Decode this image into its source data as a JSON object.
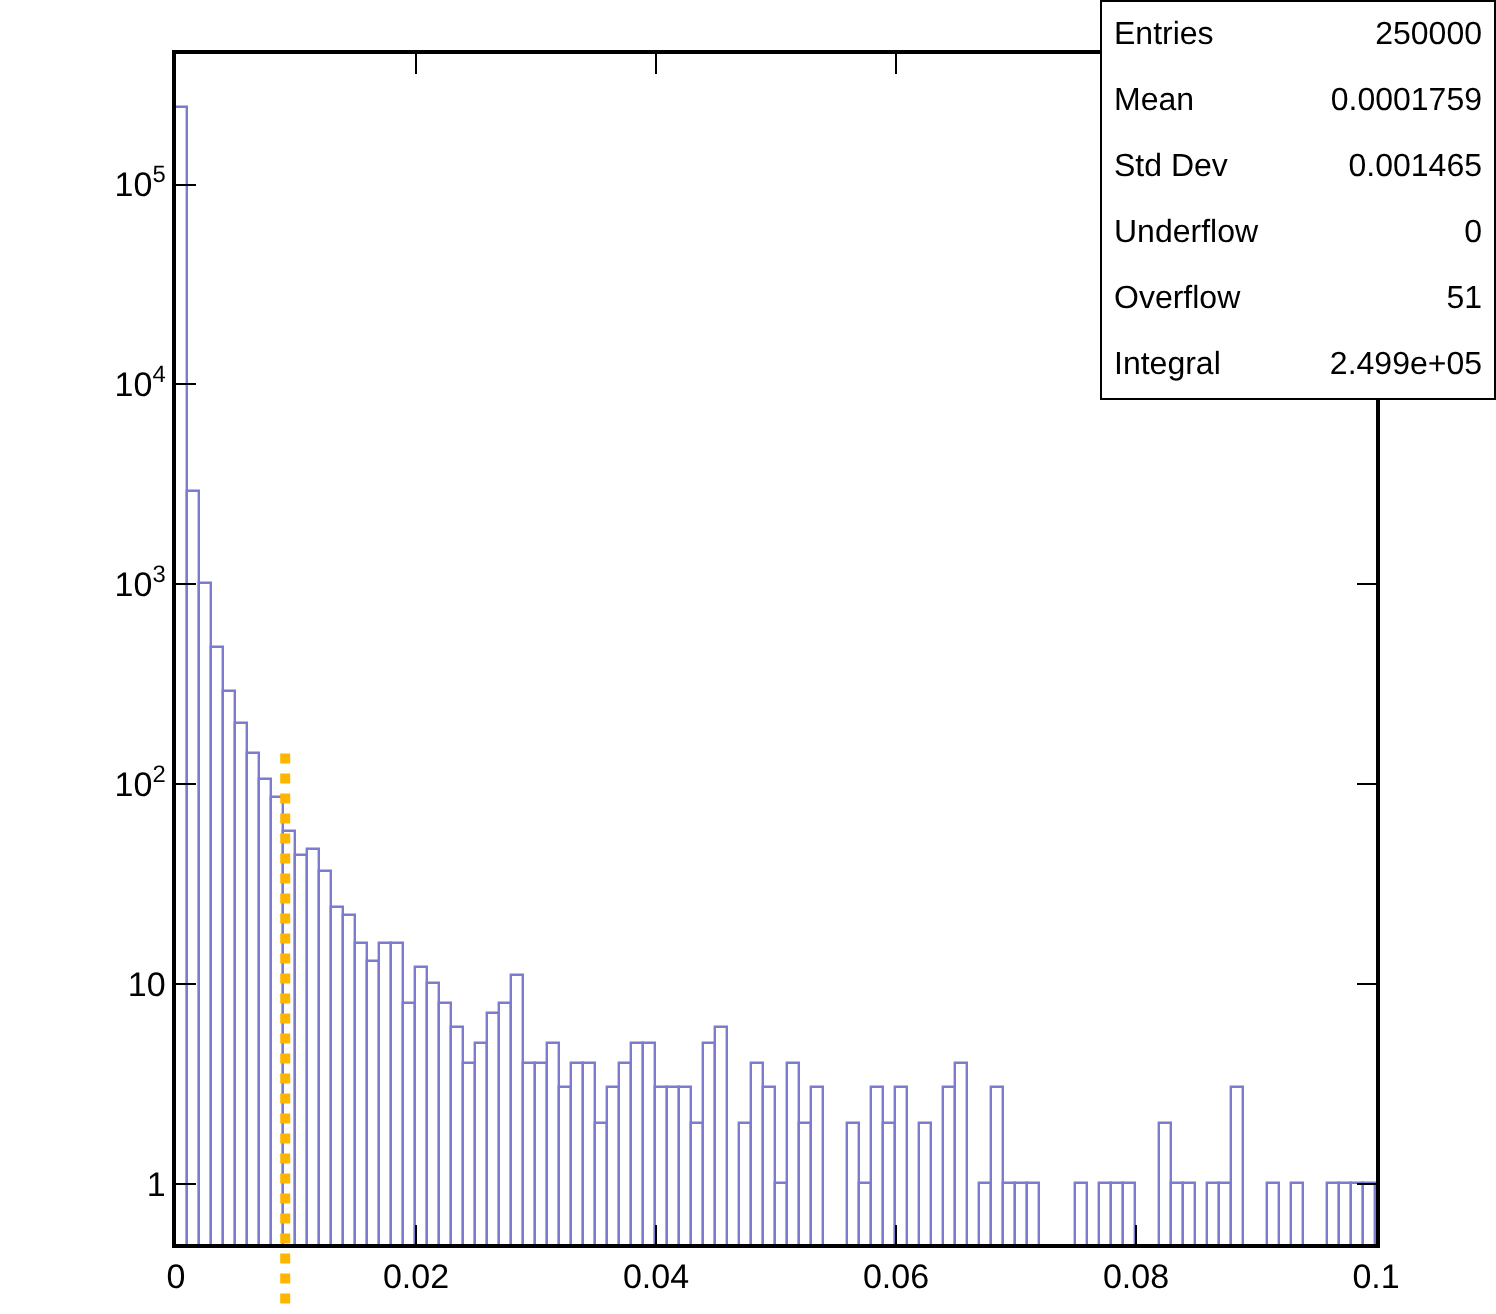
{
  "chart_data": {
    "type": "histogram",
    "log": "y",
    "bins": [
      0,
      0.001,
      0.002,
      0.003,
      0.004,
      0.005,
      0.006,
      0.007,
      0.008,
      0.009,
      0.01,
      0.011,
      0.012,
      0.013,
      0.014,
      0.015,
      0.016,
      0.017,
      0.018,
      0.019,
      0.02,
      0.021,
      0.022,
      0.023,
      0.024,
      0.025,
      0.026,
      0.027,
      0.028,
      0.029,
      0.03,
      0.031,
      0.032,
      0.033,
      0.034,
      0.035,
      0.036,
      0.037,
      0.038,
      0.039,
      0.04,
      0.041,
      0.042,
      0.043,
      0.044,
      0.045,
      0.046,
      0.047,
      0.048,
      0.049,
      0.05,
      0.051,
      0.052,
      0.053,
      0.054,
      0.055,
      0.056,
      0.057,
      0.058,
      0.059,
      0.06,
      0.061,
      0.062,
      0.063,
      0.064,
      0.065,
      0.066,
      0.067,
      0.068,
      0.069,
      0.07,
      0.071,
      0.072,
      0.073,
      0.074,
      0.075,
      0.076,
      0.077,
      0.078,
      0.079,
      0.08,
      0.081,
      0.082,
      0.083,
      0.084,
      0.085,
      0.086,
      0.087,
      0.088,
      0.089,
      0.09,
      0.091,
      0.092,
      0.093,
      0.094,
      0.095,
      0.096,
      0.097,
      0.098,
      0.099,
      0.1
    ],
    "values": [
      240000,
      2900,
      1000,
      480,
      290,
      200,
      140,
      105,
      85,
      58,
      44,
      47,
      36,
      24,
      22,
      16,
      13,
      16,
      16,
      8,
      12,
      10,
      8,
      6,
      4,
      5,
      7,
      8,
      11,
      4,
      4,
      5,
      3,
      4,
      4,
      2,
      3,
      4,
      5,
      5,
      3,
      3,
      3,
      2,
      5,
      6,
      null,
      2,
      4,
      3,
      1,
      4,
      2,
      3,
      null,
      null,
      2,
      1,
      3,
      2,
      3,
      null,
      2,
      null,
      3,
      4,
      null,
      1,
      3,
      1,
      1,
      1,
      null,
      null,
      null,
      1,
      null,
      1,
      1,
      1,
      null,
      null,
      2,
      1,
      1,
      null,
      1,
      1,
      3,
      null,
      null,
      1,
      null,
      1,
      null,
      null,
      1,
      1,
      1,
      1
    ],
    "color": "#7b7bd0",
    "xlim": [
      0,
      0.1
    ],
    "xticks": [
      0,
      0.02,
      0.04,
      0.06,
      0.08,
      0.1
    ],
    "ylim": [
      0.5,
      450000
    ],
    "yticks": [
      1,
      10,
      {
        "value": 100,
        "label": "10$^{2}$"
      },
      {
        "value": 1000,
        "label": "10$^{3}$"
      },
      {
        "value": 10000,
        "label": "10$^{4}$"
      },
      {
        "value": 100000,
        "label": "10$^{5}$"
      }
    ],
    "ref_lines": [
      {
        "axis": "x",
        "value": 0.0091,
        "color": "#ffb400",
        "line_style": "dotted"
      }
    ],
    "annotations": [
      "Entries",
      "250000",
      "Mean",
      "0.0001759",
      "Std Dev",
      "0.001465",
      "Underflow",
      "0",
      "Overflow",
      "51",
      "Integral",
      "2.499e+05"
    ]
  }
}
